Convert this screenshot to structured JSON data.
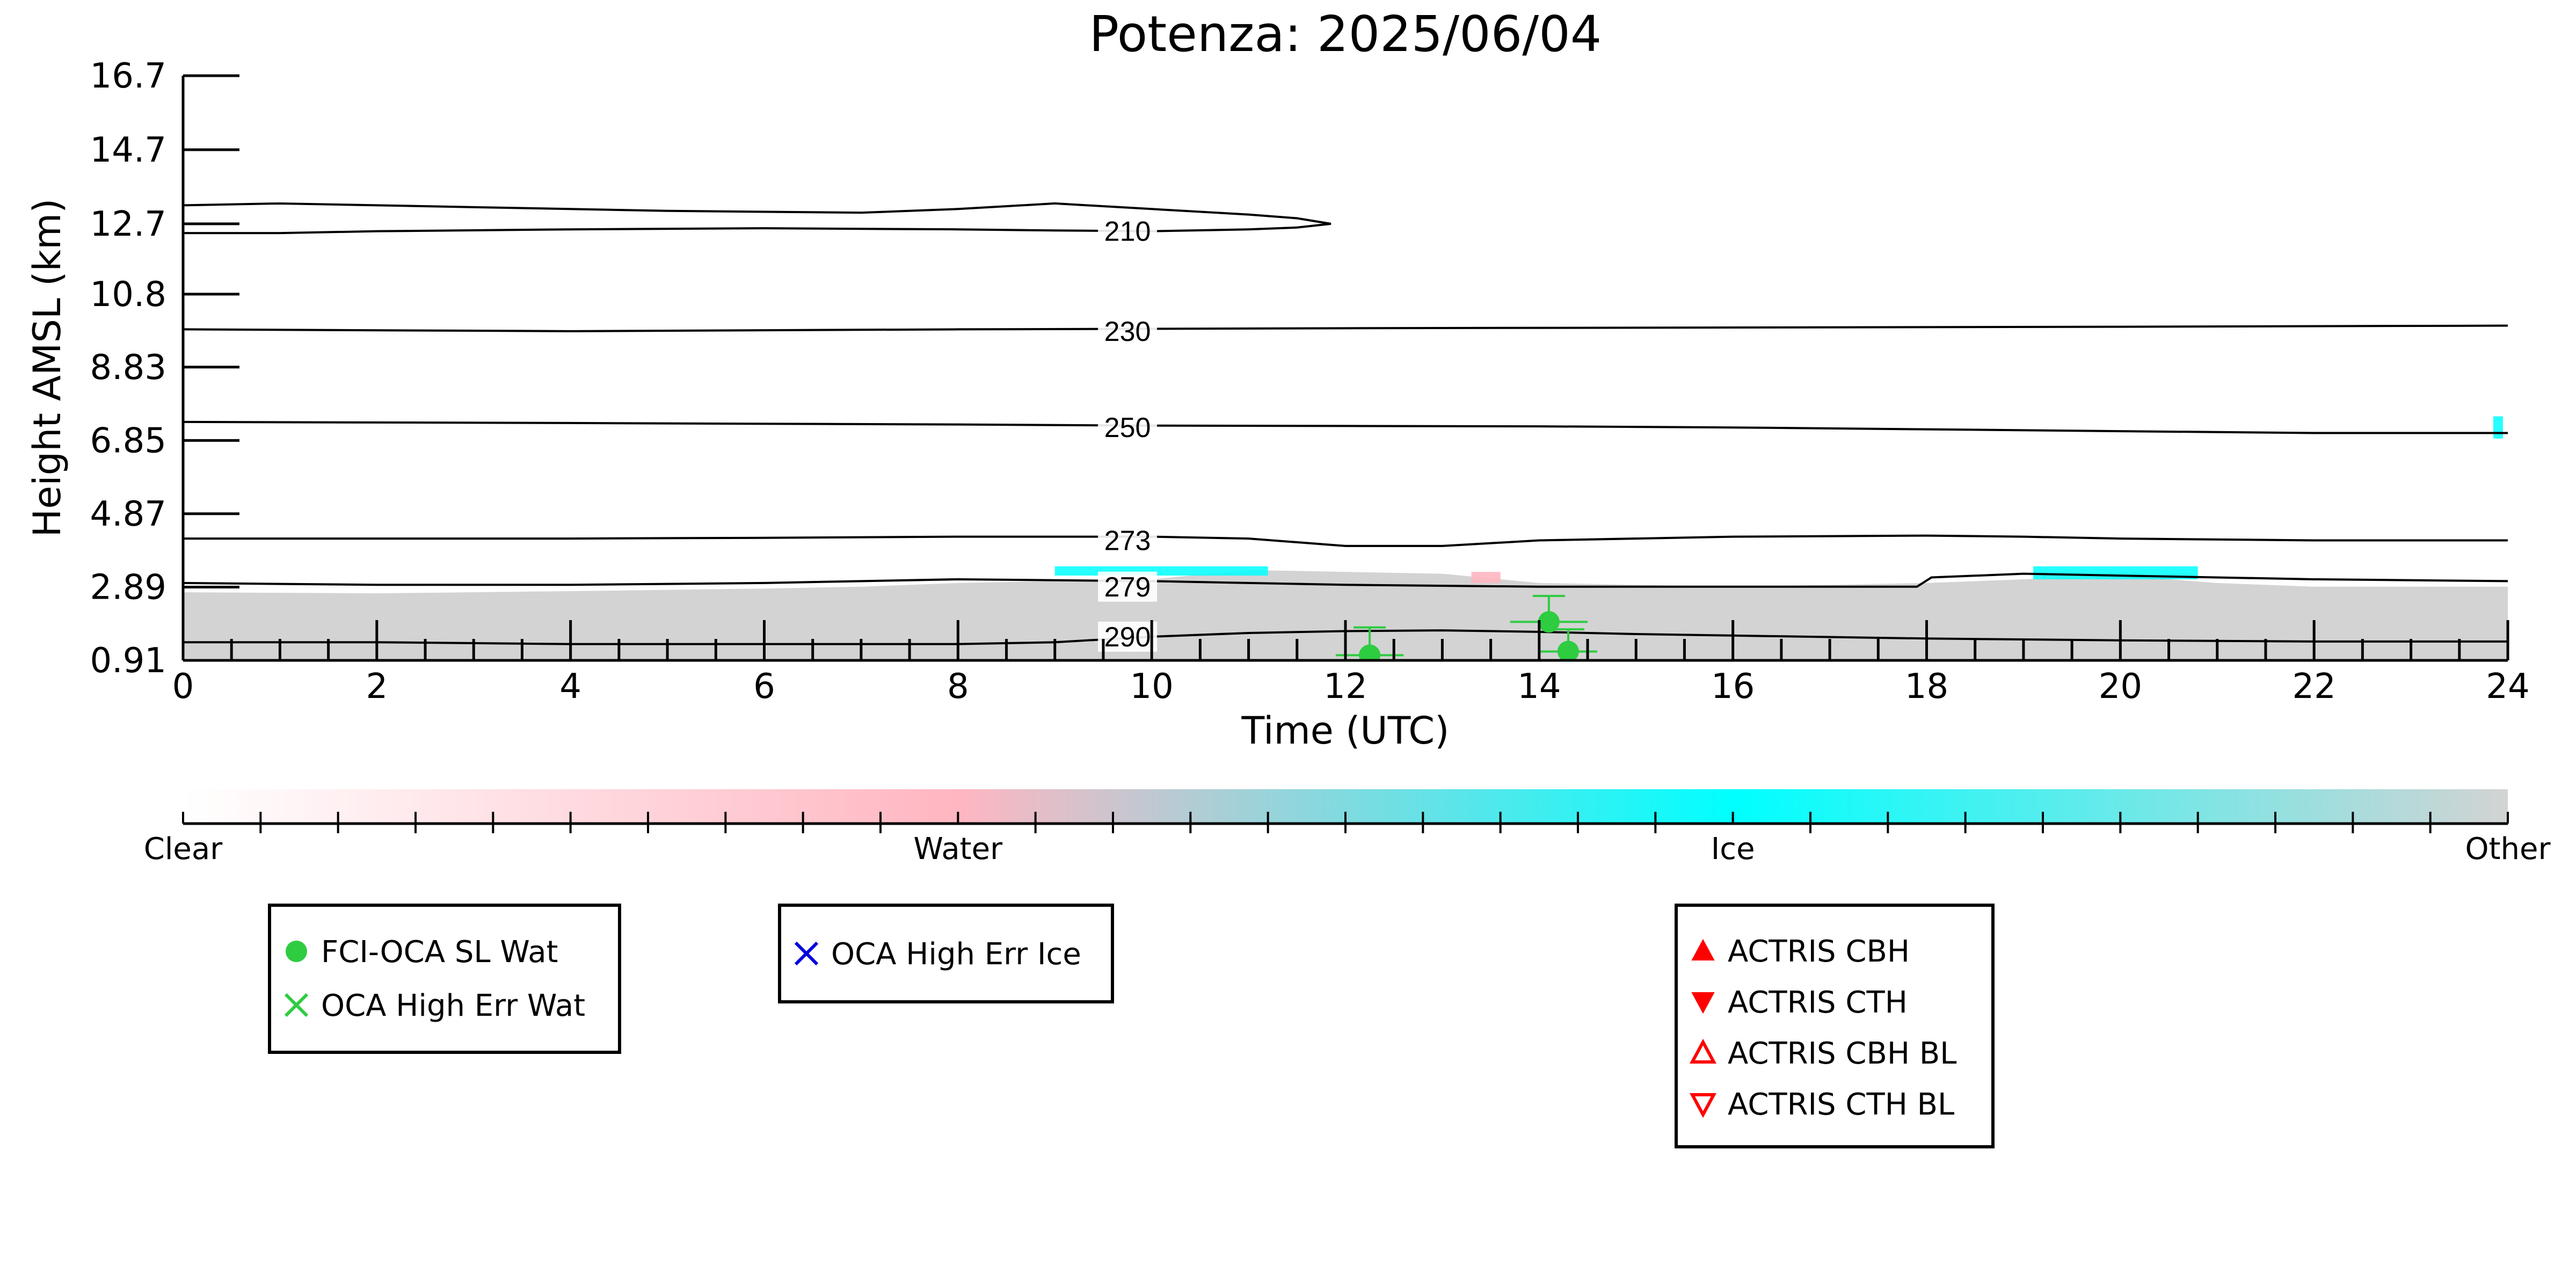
{
  "chart_data": {
    "type": "heatmap",
    "title": "Potenza: 2025/06/04",
    "xlabel": "Time (UTC)",
    "ylabel": "Height AMSL (km)",
    "xlim": [
      0,
      24
    ],
    "ylim": [
      0.91,
      16.7
    ],
    "x_ticks": [
      "0",
      "2",
      "4",
      "6",
      "8",
      "10",
      "12",
      "14",
      "16",
      "18",
      "20",
      "22",
      "24"
    ],
    "y_ticks": [
      "0.91",
      "2.89",
      "4.87",
      "6.85",
      "8.83",
      "10.8",
      "12.7",
      "14.7",
      "16.7"
    ],
    "grid": false,
    "colorbar": {
      "labels": [
        "Clear",
        "Water",
        "Ice",
        "Other"
      ],
      "colors": [
        "#ffffff",
        "#ffb6c1",
        "#00ffff",
        "#d3d3d3"
      ]
    },
    "cloud_field": {
      "other_color": "#d3d3d3",
      "ice_color": "#00ffff",
      "water_color": "#ffb6c1",
      "other_layer": {
        "x": [
          0,
          2,
          4,
          6,
          7,
          8,
          9,
          10,
          11,
          12,
          13,
          14,
          15,
          16,
          17,
          18,
          19,
          20,
          21,
          22,
          23,
          24
        ],
        "top": [
          2.75,
          2.72,
          2.78,
          2.85,
          2.9,
          3.0,
          3.05,
          3.1,
          3.35,
          3.3,
          3.25,
          3.0,
          2.95,
          2.9,
          2.95,
          3.0,
          3.1,
          3.2,
          3.0,
          2.9,
          2.9,
          2.9
        ]
      },
      "ice_patches": [
        {
          "x0": 9.0,
          "x1": 11.2,
          "y0": 3.2,
          "y1": 3.45
        },
        {
          "x0": 19.1,
          "x1": 20.8,
          "y0": 3.1,
          "y1": 3.45
        },
        {
          "x0": 23.85,
          "x1": 23.95,
          "y0": 6.9,
          "y1": 7.5
        }
      ],
      "water_patches": [
        {
          "x0": 13.3,
          "x1": 13.6,
          "y0": 3.0,
          "y1": 3.3
        }
      ]
    },
    "temperature_contours": [
      {
        "label": "210",
        "label_x": 9.75,
        "label_y": 12.5,
        "x": [
          0,
          1,
          3,
          5,
          7,
          8,
          9,
          10,
          11,
          11.5,
          11.85,
          11.5,
          11,
          10,
          9,
          8,
          6,
          4,
          2,
          1,
          0
        ],
        "y": [
          13.2,
          13.25,
          13.15,
          13.05,
          13.0,
          13.1,
          13.25,
          13.1,
          12.95,
          12.85,
          12.7,
          12.6,
          12.55,
          12.5,
          12.52,
          12.55,
          12.58,
          12.55,
          12.5,
          12.45,
          12.45
        ]
      },
      {
        "label": "230",
        "label_x": 9.75,
        "label_y": 9.8,
        "x": [
          0,
          4,
          8,
          12,
          16,
          20,
          24
        ],
        "y": [
          9.85,
          9.8,
          9.85,
          9.88,
          9.9,
          9.92,
          9.95
        ]
      },
      {
        "label": "250",
        "label_x": 9.75,
        "label_y": 7.2,
        "x": [
          0,
          4,
          8,
          10,
          12,
          14,
          16,
          18,
          20,
          22,
          24
        ],
        "y": [
          7.35,
          7.32,
          7.28,
          7.25,
          7.24,
          7.23,
          7.2,
          7.15,
          7.1,
          7.05,
          7.05
        ]
      },
      {
        "label": "273",
        "label_x": 9.75,
        "label_y": 4.15,
        "x": [
          0,
          2,
          4,
          6,
          8,
          10,
          11,
          12,
          13,
          14,
          16,
          18,
          19,
          20,
          22,
          24
        ],
        "y": [
          4.2,
          4.2,
          4.2,
          4.22,
          4.25,
          4.25,
          4.2,
          4.0,
          4.0,
          4.15,
          4.25,
          4.28,
          4.25,
          4.2,
          4.15,
          4.15
        ]
      },
      {
        "label": "279",
        "label_x": 9.75,
        "label_y": 2.9,
        "x": [
          0,
          2,
          4,
          6,
          8,
          10,
          12,
          14,
          16,
          17.9,
          18.05,
          19,
          20,
          22,
          24
        ],
        "y": [
          3.0,
          2.95,
          2.95,
          3.0,
          3.1,
          3.05,
          2.95,
          2.9,
          2.9,
          2.9,
          3.15,
          3.25,
          3.2,
          3.1,
          3.05
        ]
      },
      {
        "label": "290",
        "label_x": 9.75,
        "label_y": 1.55,
        "x": [
          0,
          2,
          4,
          6,
          8,
          9,
          10,
          11,
          12,
          13,
          14,
          15,
          16,
          18,
          20,
          22,
          24
        ],
        "y": [
          1.4,
          1.4,
          1.35,
          1.35,
          1.35,
          1.4,
          1.55,
          1.65,
          1.7,
          1.72,
          1.68,
          1.62,
          1.58,
          1.5,
          1.45,
          1.42,
          1.42
        ]
      }
    ],
    "series": [
      {
        "name": "FCI-OCA SL Wat",
        "marker": "circle",
        "color": "#2ecc40",
        "points": [
          {
            "x": 12.25,
            "y": 1.05,
            "xerr": 0.35,
            "yerr_low": 0.0,
            "yerr_high": 0.75
          },
          {
            "x": 14.1,
            "y": 1.95,
            "xerr": 0.4,
            "yerr_low": 0.0,
            "yerr_high": 0.7
          },
          {
            "x": 14.3,
            "y": 1.15,
            "xerr": 0.3,
            "yerr_low": 0.0,
            "yerr_high": 0.6
          }
        ]
      },
      {
        "name": "OCA High Err Wat",
        "marker": "x",
        "color": "#2ecc40",
        "points": []
      },
      {
        "name": "OCA High Err Ice",
        "marker": "x",
        "color": "#0000dd",
        "points": []
      },
      {
        "name": "ACTRIS CBH",
        "marker": "triangle-up-filled",
        "color": "#ff0000",
        "points": []
      },
      {
        "name": "ACTRIS CTH",
        "marker": "triangle-down-filled",
        "color": "#ff0000",
        "points": []
      },
      {
        "name": "ACTRIS CBH BL",
        "marker": "triangle-up-open",
        "color": "#ff0000",
        "points": []
      },
      {
        "name": "ACTRIS CTH BL",
        "marker": "triangle-down-open",
        "color": "#ff0000",
        "points": []
      }
    ],
    "legends": [
      {
        "entries": [
          "FCI-OCA SL Wat",
          "OCA High Err Wat"
        ]
      },
      {
        "entries": [
          "OCA High Err Ice"
        ]
      },
      {
        "entries": [
          "ACTRIS CBH",
          "ACTRIS CTH",
          "ACTRIS CBH BL",
          "ACTRIS CTH BL"
        ]
      }
    ]
  }
}
